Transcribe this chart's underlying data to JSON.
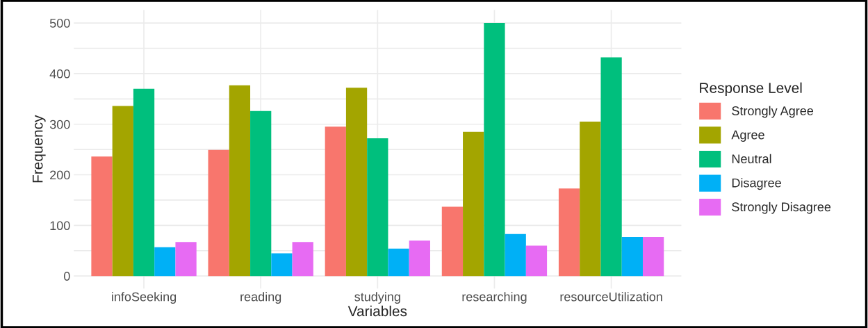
{
  "chart_data": {
    "type": "bar",
    "xlabel": "Variables",
    "ylabel": "Frequency",
    "legend_title": "Response Level",
    "categories": [
      "infoSeeking",
      "reading",
      "studying",
      "researching",
      "resourceUtilization"
    ],
    "series": [
      {
        "name": "Strongly Agree",
        "color": "#f8766d",
        "values": [
          236,
          249,
          295,
          137,
          173
        ]
      },
      {
        "name": "Agree",
        "color": "#a3a500",
        "values": [
          336,
          377,
          372,
          285,
          305
        ]
      },
      {
        "name": "Neutral",
        "color": "#00bf7d",
        "values": [
          370,
          326,
          272,
          500,
          432
        ]
      },
      {
        "name": "Disagree",
        "color": "#00b0f6",
        "values": [
          57,
          45,
          54,
          83,
          77
        ]
      },
      {
        "name": "Strongly Disagree",
        "color": "#e76bf3",
        "values": [
          67,
          67,
          70,
          60,
          77
        ]
      }
    ],
    "ylim": [
      -25,
      526
    ],
    "yticks": [
      0,
      {
        "value": 50,
        "label": null
      },
      100,
      {
        "value": 150,
        "label": null
      },
      200,
      {
        "value": 250,
        "label": null
      },
      300,
      {
        "value": 350,
        "label": null
      },
      400,
      {
        "value": 450,
        "label": null
      },
      500
    ],
    "grid": true,
    "legend": "right"
  }
}
